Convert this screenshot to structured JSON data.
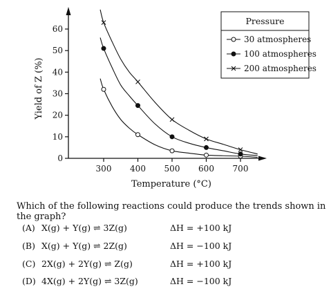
{
  "chart_data": {
    "type": "line",
    "xlabel": "Temperature (°C)",
    "ylabel": "Yield of Z (%)",
    "xlim": [
      260,
      760
    ],
    "ylim": [
      0,
      70
    ],
    "xticks": [
      300,
      400,
      500,
      600,
      700
    ],
    "yticks": [
      0,
      10,
      20,
      30,
      40,
      50,
      60
    ],
    "grid": false,
    "legend": {
      "title": "Pressure",
      "placement": "top-right"
    },
    "series": [
      {
        "name": "30 atmospheres",
        "marker": "open-circle",
        "x": [
          300,
          400,
          500,
          600,
          700
        ],
        "y": [
          32,
          11,
          3.5,
          1.5,
          1
        ],
        "curve_x": [
          290,
          300,
          325,
          350,
          375,
          400,
          450,
          500,
          550,
          600,
          650,
          700,
          750
        ],
        "curve_y": [
          37,
          32,
          24,
          18,
          14,
          11,
          6.3,
          3.5,
          2.4,
          1.5,
          1.2,
          1,
          0.5
        ]
      },
      {
        "name": "100 atmospheres",
        "marker": "filled-circle",
        "x": [
          300,
          400,
          500,
          600,
          700
        ],
        "y": [
          51,
          24.5,
          10,
          5,
          2
        ],
        "curve_x": [
          290,
          300,
          325,
          350,
          375,
          400,
          450,
          500,
          550,
          600,
          650,
          700,
          750
        ],
        "curve_y": [
          56,
          51,
          42,
          34,
          29,
          24.5,
          16,
          10,
          7,
          5,
          3.5,
          2,
          1.3
        ]
      },
      {
        "name": "200 atmospheres",
        "marker": "x",
        "x": [
          300,
          400,
          500,
          600,
          700
        ],
        "y": [
          63,
          35.5,
          18,
          9,
          4
        ],
        "curve_x": [
          290,
          300,
          325,
          350,
          375,
          400,
          450,
          500,
          550,
          600,
          650,
          700,
          750
        ],
        "curve_y": [
          69,
          63,
          54,
          46,
          40,
          35.5,
          26,
          18,
          13,
          9,
          6.5,
          4,
          2
        ]
      }
    ]
  },
  "question": "Which of the following reactions could produce the trends shown in the graph?",
  "options": [
    {
      "label": "(A)",
      "equation": "X(g) + Y(g) ⇌ 3Z(g)",
      "delta_h": "ΔH = +100 kJ"
    },
    {
      "label": "(B)",
      "equation": "X(g) + Y(g) ⇌ 2Z(g)",
      "delta_h": "ΔH = −100 kJ"
    },
    {
      "label": "(C)",
      "equation": "2X(g) + 2Y(g) ⇌ Z(g)",
      "delta_h": "ΔH = +100 kJ"
    },
    {
      "label": "(D)",
      "equation": "4X(g) + 2Y(g) ⇌ 3Z(g)",
      "delta_h": "ΔH = −100 kJ"
    }
  ]
}
